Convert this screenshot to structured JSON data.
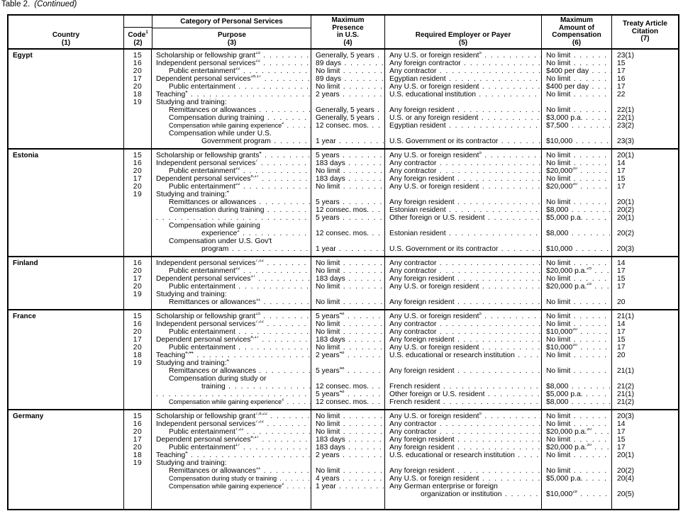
{
  "caption": {
    "table": "Table 2.",
    "continued": "(Continued)"
  },
  "header": {
    "country": "Country",
    "country_num": "(1)",
    "category": "Category of Personal Services",
    "code": "Code",
    "code_sup": "1",
    "code_num": "(2)",
    "purpose": "Purpose",
    "purpose_num": "(3)",
    "presence": [
      "Maximum",
      "Presence",
      "in U.S."
    ],
    "presence_num": "(4)",
    "employer": "Required Employer or Payer",
    "employer_num": "(5)",
    "amount": [
      "Maximum",
      "Amount of",
      "Compensation"
    ],
    "amount_num": "(6)",
    "citation": [
      "Treaty Article",
      "Citation"
    ],
    "citation_num": "(7)"
  },
  "sections": [
    {
      "country": "Egypt",
      "rows": [
        {
          "c": "15",
          "p": "Scholarship or fellowship grant",
          "ps": "15",
          "pr": "Generally, 5 years",
          "e": "Any U.S. or foreign resident",
          "es": "5",
          "a": "No limit",
          "t": "23(1)"
        },
        {
          "c": "16",
          "p": "Independent personal services",
          "ps": "22",
          "pr": "89 days",
          "e": "Any foreign contractor",
          "a": "No limit",
          "t": "15"
        },
        {
          "c": "20",
          "i": 1,
          "p": "Public entertainment",
          "ps": "22",
          "pr": "No limit",
          "e": "Any contractor",
          "a": "$400 per day",
          "t": "17"
        },
        {
          "c": "17",
          "p": "Dependent personal services",
          "ps": "16,17",
          "pr": "89 days",
          "e": "Egyptian resident",
          "a": "No limit",
          "t": "16"
        },
        {
          "c": "20",
          "i": 1,
          "p": "Public entertainment",
          "pr": "No limit",
          "e": "Any U.S. or foreign resident",
          "a": "$400 per day",
          "t": "17"
        },
        {
          "c": "18",
          "p": "Teaching",
          "ps": "4",
          "pr": "2 years",
          "e": "U.S. educational institution",
          "a": "No limit",
          "t": "22"
        },
        {
          "c": "19",
          "p": "Studying and training:"
        },
        {
          "i": 1,
          "p": "Remittances or allowances",
          "pr": "Generally, 5 years",
          "e": "Any foreign resident",
          "a": "No limit",
          "t": "22(1)"
        },
        {
          "i": 1,
          "p": "Compensation during training",
          "pr": "Generally, 5 years",
          "e": "U.S. or any foreign resident",
          "a": "$3,000 p.a.",
          "t": "22(1)"
        },
        {
          "i": 1,
          "sm": 1,
          "p": "Compensation while gaining experience",
          "ps": "2",
          "pr": "12 consec. mos.",
          "e": "Egyptian resident",
          "a": "$7,500",
          "t": "23(2)"
        },
        {
          "i": 1,
          "p": "Compensation while under U.S."
        },
        {
          "i": 2,
          "p": "Government program",
          "pr": "1 year",
          "e": "U.S. Government or its contractor",
          "a": "$10,000",
          "t": "23(3)"
        }
      ]
    },
    {
      "country": "Estonia",
      "rows": [
        {
          "c": "15",
          "p": "Scholarship or fellowship grants",
          "ps": "4",
          "pr": "5 years",
          "e": "Any U.S. or foreign resident",
          "es": "5",
          "a": "No limit",
          "t": "20(1)"
        },
        {
          "c": "16",
          "p": "Independent personal services",
          "ps": "7",
          "pr": "183 days",
          "e": "Any contractor",
          "a": "No limit",
          "t": "14"
        },
        {
          "c": "20",
          "i": 1,
          "p": "Public entertainment",
          "ps": "22",
          "pr": "No limit",
          "e": "Any contractor",
          "a": "$20,000",
          "as": "30",
          "t": "17"
        },
        {
          "c": "17",
          "p": "Dependent personal services",
          "ps": "8,17",
          "pr": "183 days",
          "e": "Any foreign resident",
          "a": "No limit",
          "t": "15"
        },
        {
          "c": "20",
          "i": 1,
          "p": "Public entertainment",
          "ps": "22",
          "pr": "No limit",
          "e": "Any U.S. or foreign resident",
          "a": "$20,000",
          "as": "30",
          "t": "17"
        },
        {
          "c": "19",
          "p": "Studying and training:",
          "ps": "4"
        },
        {
          "i": 1,
          "p": "Remittances or allowances",
          "pr": "5 years",
          "e": "Any foreign resident",
          "a": "No limit",
          "t": "20(1)"
        },
        {
          "i": 1,
          "p": "Compensation during training",
          "pr": "12 consec. mos.",
          "e": "Estonian resident",
          "a": "$8,000",
          "t": "20(2)"
        },
        {
          "pr": "5 years",
          "e": "Other foreign or U.S. resident",
          "a": "$5,000 p.a.",
          "t": "20(1)"
        },
        {
          "i": 1,
          "p": "Compensation while gaining"
        },
        {
          "i": 2,
          "p": "experience",
          "ps": "2",
          "pr": "12 consec. mos.",
          "e": "Estonian resident",
          "a": "$8,000",
          "t": "20(2)"
        },
        {
          "i": 1,
          "p": "Compensation under U.S. Gov't"
        },
        {
          "i": 2,
          "p": "program",
          "pr": "1 year",
          "e": "U.S. Government or its contractor",
          "a": "$10,000",
          "t": "20(3)"
        }
      ]
    },
    {
      "country": "Finland",
      "rows": [
        {
          "c": "16",
          "p": "Independent personal services",
          "ps": "7,22",
          "pr": "No limit",
          "e": "Any contractor",
          "a": "No limit",
          "t": "14"
        },
        {
          "c": "20",
          "i": 1,
          "p": "Public entertainment",
          "ps": "22",
          "pr": "No limit",
          "e": "Any contractor",
          "a": "$20,000 p.a.",
          "as": "25",
          "t": "17"
        },
        {
          "c": "17",
          "p": "Dependent personal services",
          "ps": "17",
          "pr": "183 days",
          "e": "Any foreign resident",
          "a": "No limit",
          "t": "15"
        },
        {
          "c": "20",
          "i": 1,
          "p": "Public entertainment",
          "pr": "No limit",
          "e": "Any U.S. or foreign resident",
          "a": "$20,000 p.a.",
          "as": "25",
          "t": "17"
        },
        {
          "c": "19",
          "p": "Studying and training:"
        },
        {
          "i": 1,
          "p": "Remittances or allowances",
          "ps": "11",
          "pr": "No limit",
          "e": "Any foreign resident",
          "a": "No limit",
          "t": "20"
        }
      ]
    },
    {
      "country": "France",
      "rows": [
        {
          "c": "15",
          "p": "Scholarship or fellowship grant",
          "ps": "15",
          "pr": "5 years",
          "prs": "48",
          "e": "Any U.S. or foreign resident",
          "es": "5",
          "a": "No limit",
          "t": "21(1)"
        },
        {
          "c": "16",
          "p": "Independent personal services",
          "ps": "7,22",
          "pr": "No limit",
          "e": "Any contractor",
          "a": "No limit",
          "t": "14"
        },
        {
          "c": "20",
          "i": 1,
          "p": "Public entertainment",
          "pr": "No limit",
          "e": "Any contractor",
          "a": "$10,000",
          "as": "30",
          "t": "17"
        },
        {
          "c": "17",
          "p": "Dependent personal services",
          "ps": "8,17",
          "pr": "183 days",
          "e": "Any foreign resident",
          "a": "No limit",
          "t": "15"
        },
        {
          "c": "20",
          "i": 1,
          "p": "Public entertainment",
          "pr": "No limit",
          "e": "Any U.S. or foreign resident",
          "a": "$10,000",
          "as": "30",
          "t": "17"
        },
        {
          "c": "18",
          "p": "Teaching",
          "ps": "4,44",
          "pr": "2 years",
          "prs": "48",
          "e": "U.S. educational or research institution",
          "a": "No limit",
          "t": "20"
        },
        {
          "c": "19",
          "p": "Studying and training:",
          "ps": "4"
        },
        {
          "i": 1,
          "p": "Remittances or allowances",
          "pr": "5 years",
          "prs": "48",
          "e": "Any foreign resident",
          "a": "No limit",
          "t": "21(1)"
        },
        {
          "i": 1,
          "p": "Compensation during study or"
        },
        {
          "i": 2,
          "p": "training",
          "pr": "12 consec. mos.",
          "e": "French resident",
          "a": "$8,000",
          "t": "21(2)"
        },
        {
          "pr": "5 years",
          "prs": "48",
          "e": "Other foreign or U.S. resident",
          "a": "$5,000 p.a.",
          "t": "21(1)"
        },
        {
          "i": 1,
          "sm": 1,
          "p": "Compensation while gaining experience",
          "ps": "2",
          "pr": "12 consec. mos.",
          "e": "French resident",
          "a": "$8,000",
          "t": "21(2)"
        }
      ]
    },
    {
      "country": "Germany",
      "rows": [
        {
          "c": "15",
          "p": "Scholarship or fellowship grant",
          "ps": "7,8,22",
          "pr": "No limit",
          "e": "Any U.S. or foreign resident",
          "es": "5",
          "a": "No limit",
          "t": "20(3)"
        },
        {
          "c": "16",
          "p": "Independent personal services",
          "ps": "7,22",
          "pr": "No limit",
          "e": "Any contractor",
          "a": "No limit",
          "t": "14"
        },
        {
          "c": "20",
          "i": 1,
          "p": "Public entertainment",
          "ps": "7,22",
          "pr": "No limit",
          "e": "Any contractor",
          "a": "$20,000 p.a.",
          "as": "30",
          "t": "17"
        },
        {
          "c": "17",
          "p": "Dependent personal services",
          "ps": "8,17",
          "pr": "183 days",
          "e": "Any foreign resident",
          "a": "No limit",
          "t": "15"
        },
        {
          "c": "20",
          "i": 1,
          "p": "Public entertainment",
          "ps": "17",
          "pr": "183 days",
          "e": "Any foreign resident",
          "a": "$20,000 p.a.",
          "as": "30",
          "t": "17"
        },
        {
          "c": "18",
          "p": "Teaching",
          "ps": "4",
          "pr": "2 years",
          "e": "U.S. educational or research institution",
          "a": "No limit",
          "t": "20(1)"
        },
        {
          "c": "19",
          "p": "Studying and training:"
        },
        {
          "i": 1,
          "p": "Remittances or allowances",
          "ps": "11",
          "pr": "No limit",
          "e": "Any foreign resident",
          "a": "No limit",
          "t": "20(2)"
        },
        {
          "i": 1,
          "sm": 1,
          "p": "Compensation during study or training",
          "pr": "4 years",
          "e": "Any U.S. or foreign resident",
          "a": "$5,000 p.a.",
          "t": "20(4)"
        },
        {
          "i": 1,
          "sm": 1,
          "p": "Compensation while gaining experience",
          "ps": "2",
          "pr": "1 year",
          "e": "Any German enterprise or foreign",
          "enl": 1
        },
        {
          "ei": 1,
          "e": "organization or institution",
          "a": "$10,000",
          "as": "28",
          "t": "20(5)"
        },
        {}
      ]
    }
  ]
}
